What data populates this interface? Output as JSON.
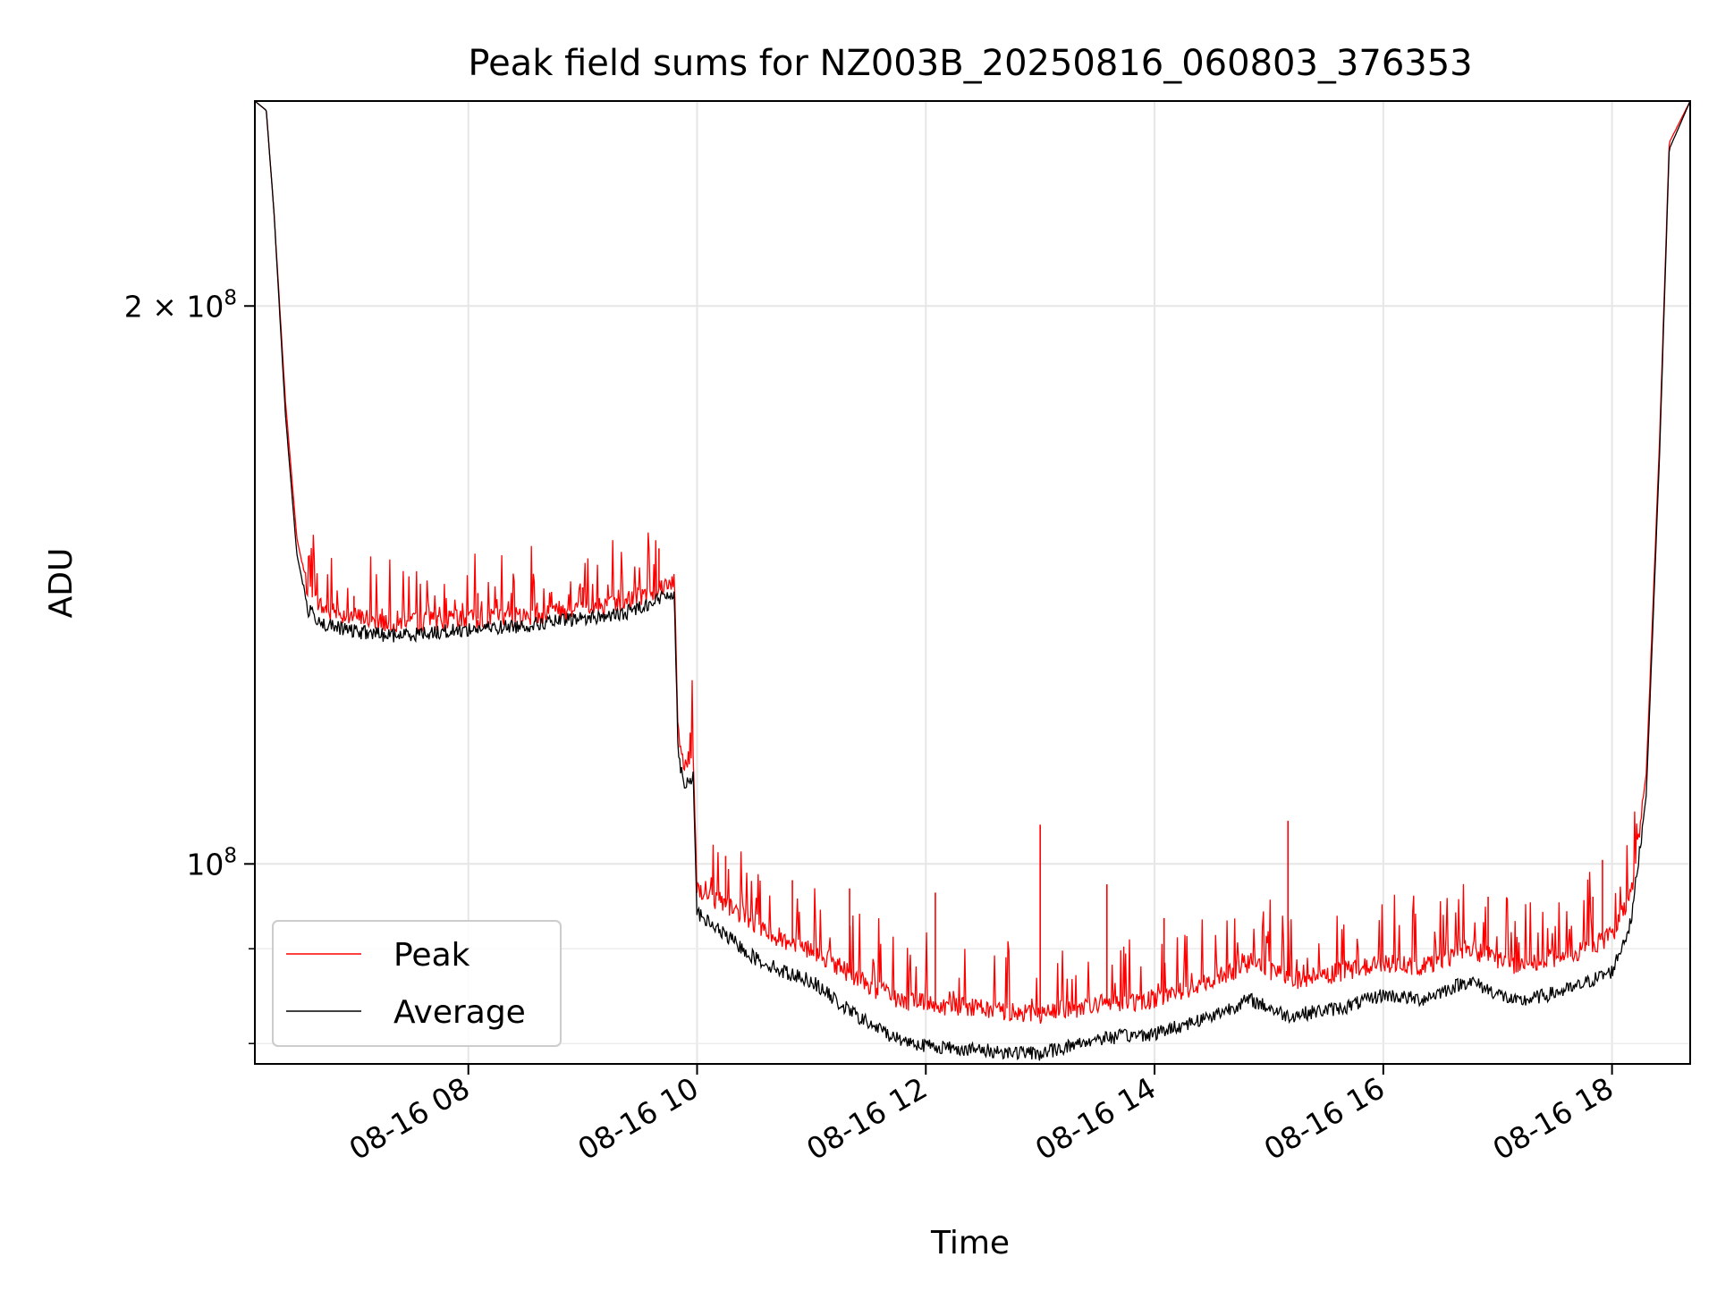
{
  "chart_data": {
    "type": "line",
    "title": "Peak field sums for NZ003B_20250816_060803_376353",
    "xlabel": "Time",
    "ylabel": "ADU",
    "yscale": "log",
    "ylim": [
      78000000,
      258000000
    ],
    "xlim": [
      "08-16 06:08",
      "08-16 18:41"
    ],
    "grid": true,
    "legend_position": "lower-left",
    "x_ticks": [
      {
        "t": "08-16 08:00",
        "label": "08-16 08"
      },
      {
        "t": "08-16 10:00",
        "label": "08-16 10"
      },
      {
        "t": "08-16 12:00",
        "label": "08-16 12"
      },
      {
        "t": "08-16 14:00",
        "label": "08-16 14"
      },
      {
        "t": "08-16 16:00",
        "label": "08-16 16"
      },
      {
        "t": "08-16 18:00",
        "label": "08-16 18"
      }
    ],
    "y_ticks": [
      {
        "value": 200000000,
        "base": "2 × 10",
        "exp": "8"
      },
      {
        "value": 100000000,
        "base": "10",
        "exp": "8"
      }
    ],
    "y_minor_ticks": [
      80000000,
      90000000
    ],
    "series": [
      {
        "name": "Peak",
        "color": "#ff0000",
        "points": [
          [
            "08-16 06:08",
            258000000
          ],
          [
            "08-16 06:14",
            255000000
          ],
          [
            "08-16 06:18",
            225000000
          ],
          [
            "08-16 06:24",
            178000000
          ],
          [
            "08-16 06:30",
            150000000
          ],
          [
            "08-16 06:36",
            140000000
          ],
          [
            "08-16 06:45",
            137000000
          ],
          [
            "08-16 07:00",
            136000000
          ],
          [
            "08-16 07:20",
            135000000
          ],
          [
            "08-16 07:40",
            135200000
          ],
          [
            "08-16 08:00",
            135500000
          ],
          [
            "08-16 08:30",
            136000000
          ],
          [
            "08-16 09:00",
            137500000
          ],
          [
            "08-16 09:20",
            138000000
          ],
          [
            "08-16 09:40",
            141000000
          ],
          [
            "08-16 09:48",
            142500000
          ],
          [
            "08-16 09:50",
            118000000
          ],
          [
            "08-16 09:53",
            113000000
          ],
          [
            "08-16 09:58",
            114500000
          ],
          [
            "08-16 10:00",
            97000000
          ],
          [
            "08-16 10:15",
            95000000
          ],
          [
            "08-16 10:30",
            93000000
          ],
          [
            "08-16 10:45",
            91000000
          ],
          [
            "08-16 11:00",
            90000000
          ],
          [
            "08-16 11:15",
            88000000
          ],
          [
            "08-16 11:30",
            86000000
          ],
          [
            "08-16 11:45",
            84500000
          ],
          [
            "08-16 12:00",
            84000000
          ],
          [
            "08-16 12:30",
            83500000
          ],
          [
            "08-16 13:00",
            83000000
          ],
          [
            "08-16 13:30",
            84000000
          ],
          [
            "08-16 14:00",
            84500000
          ],
          [
            "08-16 14:30",
            86500000
          ],
          [
            "08-16 14:50",
            88500000
          ],
          [
            "08-16 15:10",
            86500000
          ],
          [
            "08-16 15:40",
            87500000
          ],
          [
            "08-16 16:00",
            88500000
          ],
          [
            "08-16 16:20",
            88000000
          ],
          [
            "08-16 16:45",
            90000000
          ],
          [
            "08-16 17:10",
            88000000
          ],
          [
            "08-16 17:40",
            89500000
          ],
          [
            "08-16 18:00",
            91500000
          ],
          [
            "08-16 18:10",
            96000000
          ],
          [
            "08-16 18:18",
            112000000
          ],
          [
            "08-16 18:25",
            170000000
          ],
          [
            "08-16 18:30",
            245000000
          ],
          [
            "08-16 18:36",
            252000000
          ],
          [
            "08-16 18:41",
            258000000
          ]
        ],
        "spikes": [
          [
            "08-16 09:40",
            148000000
          ],
          [
            "08-16 08:05",
            140000000
          ],
          [
            "08-16 09:00",
            141000000
          ],
          [
            "08-16 07:00",
            139500000
          ],
          [
            "08-16 10:15",
            101000000
          ],
          [
            "08-16 10:50",
            98000000
          ],
          [
            "08-16 11:20",
            97000000
          ],
          [
            "08-16 12:05",
            96500000
          ],
          [
            "08-16 13:00",
            105000000
          ],
          [
            "08-16 13:35",
            97500000
          ],
          [
            "08-16 14:05",
            93500000
          ],
          [
            "08-16 15:10",
            105500000
          ],
          [
            "08-16 16:55",
            96000000
          ],
          [
            "08-16 17:50",
            96000000
          ],
          [
            "08-16 17:55",
            100500000
          ]
        ]
      },
      {
        "name": "Average",
        "color": "#000000",
        "points": [
          [
            "08-16 06:08",
            258000000
          ],
          [
            "08-16 06:14",
            255000000
          ],
          [
            "08-16 06:18",
            225000000
          ],
          [
            "08-16 06:24",
            175000000
          ],
          [
            "08-16 06:30",
            147000000
          ],
          [
            "08-16 06:36",
            137000000
          ],
          [
            "08-16 06:45",
            134500000
          ],
          [
            "08-16 07:00",
            133500000
          ],
          [
            "08-16 07:20",
            132800000
          ],
          [
            "08-16 07:40",
            133300000
          ],
          [
            "08-16 08:00",
            133800000
          ],
          [
            "08-16 08:30",
            134500000
          ],
          [
            "08-16 09:00",
            135700000
          ],
          [
            "08-16 09:20",
            136300000
          ],
          [
            "08-16 09:40",
            139000000
          ],
          [
            "08-16 09:48",
            140300000
          ],
          [
            "08-16 09:50",
            115000000
          ],
          [
            "08-16 09:53",
            110500000
          ],
          [
            "08-16 09:58",
            111500000
          ],
          [
            "08-16 10:00",
            94000000
          ],
          [
            "08-16 10:15",
            91500000
          ],
          [
            "08-16 10:30",
            89000000
          ],
          [
            "08-16 10:45",
            87500000
          ],
          [
            "08-16 11:00",
            86500000
          ],
          [
            "08-16 11:15",
            84000000
          ],
          [
            "08-16 11:30",
            82000000
          ],
          [
            "08-16 11:45",
            80500000
          ],
          [
            "08-16 12:00",
            79800000
          ],
          [
            "08-16 12:30",
            79300000
          ],
          [
            "08-16 13:00",
            79000000
          ],
          [
            "08-16 13:30",
            80500000
          ],
          [
            "08-16 14:00",
            81000000
          ],
          [
            "08-16 14:30",
            82800000
          ],
          [
            "08-16 14:50",
            84500000
          ],
          [
            "08-16 15:10",
            82800000
          ],
          [
            "08-16 15:40",
            83700000
          ],
          [
            "08-16 16:00",
            85000000
          ],
          [
            "08-16 16:20",
            84500000
          ],
          [
            "08-16 16:45",
            86500000
          ],
          [
            "08-16 17:10",
            84200000
          ],
          [
            "08-16 17:40",
            85700000
          ],
          [
            "08-16 18:00",
            87500000
          ],
          [
            "08-16 18:10",
            93000000
          ],
          [
            "08-16 18:18",
            109000000
          ],
          [
            "08-16 18:25",
            167000000
          ],
          [
            "08-16 18:30",
            243000000
          ],
          [
            "08-16 18:36",
            251000000
          ],
          [
            "08-16 18:41",
            258000000
          ]
        ]
      }
    ]
  }
}
